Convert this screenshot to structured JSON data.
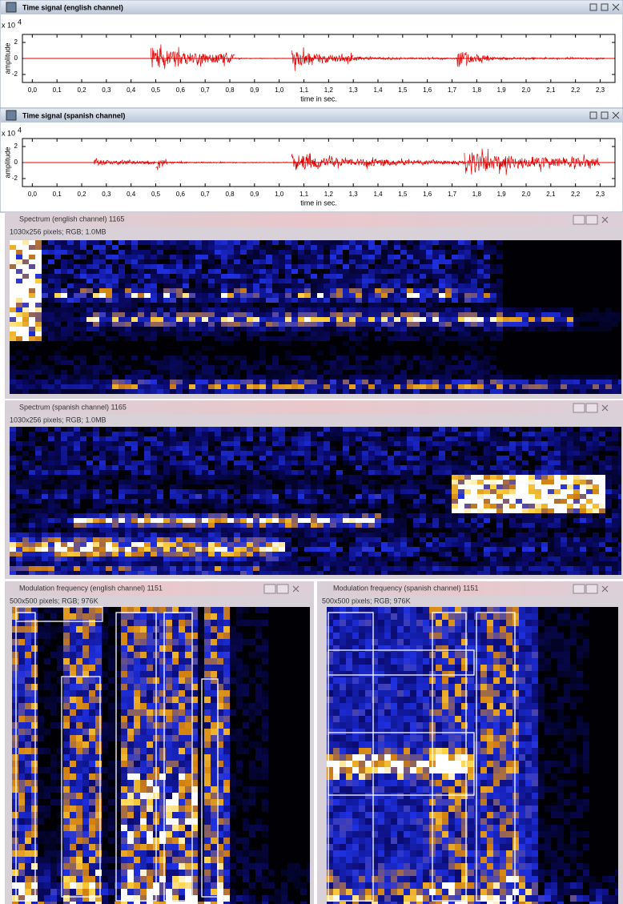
{
  "windows": [
    {
      "title": "Time signal (english channel)",
      "plot": {
        "multiplier": "x 10",
        "multiplier_exp": "4",
        "ylabel": "amplitude",
        "xlabel": "time in sec.",
        "xlim": [
          -0.04,
          2.36
        ],
        "ylim": [
          -3,
          3
        ],
        "yticks": [
          -2,
          0,
          2
        ],
        "xticks": [
          {
            "value": 0,
            "label": "0,0"
          },
          {
            "value": 0.1,
            "label": "0,1"
          },
          {
            "value": 0.2,
            "label": "0,2"
          },
          {
            "value": 0.3,
            "label": "0,3"
          },
          {
            "value": 0.4,
            "label": "0,4"
          },
          {
            "value": 0.5,
            "label": "0,5"
          },
          {
            "value": 0.6,
            "label": "0,6"
          },
          {
            "value": 0.7,
            "label": "0,7"
          },
          {
            "value": 0.8,
            "label": "0,8"
          },
          {
            "value": 0.9,
            "label": "0,9"
          },
          {
            "value": 1.0,
            "label": "1,0"
          },
          {
            "value": 1.1,
            "label": "1,1"
          },
          {
            "value": 1.2,
            "label": "1,2"
          },
          {
            "value": 1.3,
            "label": "1,3"
          },
          {
            "value": 1.4,
            "label": "1,4"
          },
          {
            "value": 1.5,
            "label": "1,5"
          },
          {
            "value": 1.6,
            "label": "1,6"
          },
          {
            "value": 1.7,
            "label": "1,7"
          },
          {
            "value": 1.8,
            "label": "1,8"
          },
          {
            "value": 1.9,
            "label": "1,9"
          },
          {
            "value": 2.0,
            "label": "2,0"
          },
          {
            "value": 2.1,
            "label": "2,1"
          },
          {
            "value": 2.2,
            "label": "2,2"
          },
          {
            "value": 2.3,
            "label": "2,3"
          }
        ],
        "bursts": [
          {
            "start": 0.48,
            "end": 0.82,
            "amplitude": 2.5
          },
          {
            "start": 0.82,
            "end": 1.04,
            "amplitude": 0.15
          },
          {
            "start": 1.05,
            "end": 1.3,
            "amplitude": 2
          },
          {
            "start": 1.3,
            "end": 1.72,
            "amplitude": 0.4
          },
          {
            "start": 1.72,
            "end": 1.85,
            "amplitude": 1.8
          },
          {
            "start": 1.85,
            "end": 2.32,
            "amplitude": 0.35
          }
        ]
      }
    },
    {
      "title": "Time signal (spanish channel)",
      "plot": {
        "multiplier": "x 10",
        "multiplier_exp": "4",
        "ylabel": "amplitude",
        "xlabel": "time in sec.",
        "xlim": [
          -0.04,
          2.36
        ],
        "ylim": [
          -3,
          3
        ],
        "yticks": [
          -2,
          0,
          2
        ],
        "xticks": [
          {
            "value": 0,
            "label": "0,0"
          },
          {
            "value": 0.1,
            "label": "0,1"
          },
          {
            "value": 0.2,
            "label": "0,2"
          },
          {
            "value": 0.3,
            "label": "0,3"
          },
          {
            "value": 0.4,
            "label": "0,4"
          },
          {
            "value": 0.5,
            "label": "0,5"
          },
          {
            "value": 0.6,
            "label": "0,6"
          },
          {
            "value": 0.7,
            "label": "0,7"
          },
          {
            "value": 0.8,
            "label": "0,8"
          },
          {
            "value": 0.9,
            "label": "0,9"
          },
          {
            "value": 1.0,
            "label": "1,0"
          },
          {
            "value": 1.1,
            "label": "1,1"
          },
          {
            "value": 1.2,
            "label": "1,2"
          },
          {
            "value": 1.3,
            "label": "1,3"
          },
          {
            "value": 1.4,
            "label": "1,4"
          },
          {
            "value": 1.5,
            "label": "1,5"
          },
          {
            "value": 1.6,
            "label": "1,6"
          },
          {
            "value": 1.7,
            "label": "1,7"
          },
          {
            "value": 1.8,
            "label": "1,8"
          },
          {
            "value": 1.9,
            "label": "1,9"
          },
          {
            "value": 2.0,
            "label": "2,0"
          },
          {
            "value": 2.1,
            "label": "2,1"
          },
          {
            "value": 2.2,
            "label": "2,2"
          },
          {
            "value": 2.3,
            "label": "2,3"
          }
        ],
        "bursts": [
          {
            "start": 0.25,
            "end": 0.5,
            "amplitude": 0.8
          },
          {
            "start": 0.5,
            "end": 0.55,
            "amplitude": 1.3
          },
          {
            "start": 0.55,
            "end": 1.04,
            "amplitude": 0.2
          },
          {
            "start": 1.05,
            "end": 1.35,
            "amplitude": 2
          },
          {
            "start": 1.35,
            "end": 1.75,
            "amplitude": 1
          },
          {
            "start": 1.75,
            "end": 2.3,
            "amplitude": 2.6
          }
        ]
      }
    },
    {
      "title": "Spectrum (english channel) 1165",
      "info": "1030x256 pixels; RGB; 1.0MB"
    },
    {
      "title": "Spectrum (spanish channel) 1165",
      "info": "1030x256 pixels; RGB; 1.0MB"
    },
    {
      "title": "Modulation frequency (english channel) 1151",
      "info": "500x500 pixels; RGB; 976K"
    },
    {
      "title": "Modulation frequency (spanish channel) 1151",
      "info": "500x500 pixels; RGB; 976K"
    }
  ]
}
